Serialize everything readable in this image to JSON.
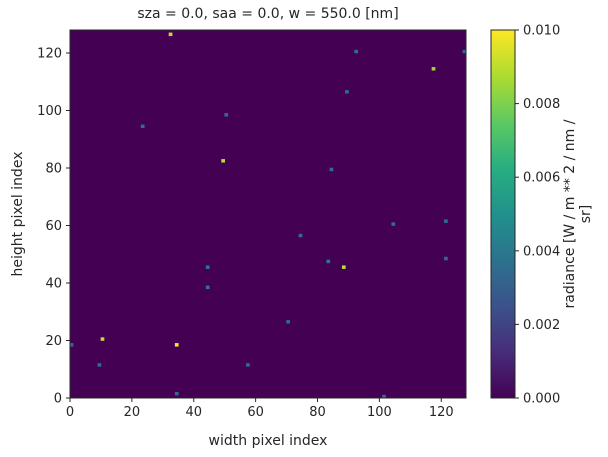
{
  "chart_data": {
    "type": "heatmap",
    "title": "sza = 0.0, saa = 0.0, w = 550.0 [nm]",
    "xlabel": "width pixel index",
    "ylabel": "height pixel index",
    "xlim": [
      0,
      128
    ],
    "ylim": [
      0,
      128
    ],
    "x_ticks": [
      0,
      20,
      40,
      60,
      80,
      100,
      120
    ],
    "y_ticks": [
      0,
      20,
      40,
      60,
      80,
      100,
      120
    ],
    "grid": false,
    "background_value": 0.0,
    "colormap": "viridis",
    "colorbar": {
      "label": "radiance [W / m ** 2 / nm / sr]",
      "range": [
        0.0,
        0.01
      ],
      "ticks": [
        "0.000",
        "0.002",
        "0.004",
        "0.006",
        "0.008",
        "0.010"
      ]
    },
    "points": [
      {
        "x": 32,
        "y": 126,
        "value": 0.009
      },
      {
        "x": 92,
        "y": 120,
        "value": 0.0035
      },
      {
        "x": 127,
        "y": 120,
        "value": 0.0035
      },
      {
        "x": 117,
        "y": 114,
        "value": 0.0085
      },
      {
        "x": 89,
        "y": 106,
        "value": 0.0035
      },
      {
        "x": 50,
        "y": 98,
        "value": 0.0035
      },
      {
        "x": 23,
        "y": 94,
        "value": 0.0035
      },
      {
        "x": 49,
        "y": 82,
        "value": 0.009
      },
      {
        "x": 84,
        "y": 79,
        "value": 0.0035
      },
      {
        "x": 121,
        "y": 61,
        "value": 0.0035
      },
      {
        "x": 104,
        "y": 60,
        "value": 0.0035
      },
      {
        "x": 74,
        "y": 56,
        "value": 0.0035
      },
      {
        "x": 121,
        "y": 48,
        "value": 0.0035
      },
      {
        "x": 83,
        "y": 47,
        "value": 0.004
      },
      {
        "x": 44,
        "y": 45,
        "value": 0.004
      },
      {
        "x": 88,
        "y": 45,
        "value": 0.009
      },
      {
        "x": 44,
        "y": 38,
        "value": 0.004
      },
      {
        "x": 70,
        "y": 26,
        "value": 0.0035
      },
      {
        "x": 10,
        "y": 20,
        "value": 0.009
      },
      {
        "x": 0,
        "y": 18,
        "value": 0.0035
      },
      {
        "x": 34,
        "y": 18,
        "value": 0.01
      },
      {
        "x": 9,
        "y": 11,
        "value": 0.0035
      },
      {
        "x": 57,
        "y": 11,
        "value": 0.0035
      },
      {
        "x": 34,
        "y": 1,
        "value": 0.0035
      },
      {
        "x": 101,
        "y": 0,
        "value": 0.0035
      }
    ]
  }
}
